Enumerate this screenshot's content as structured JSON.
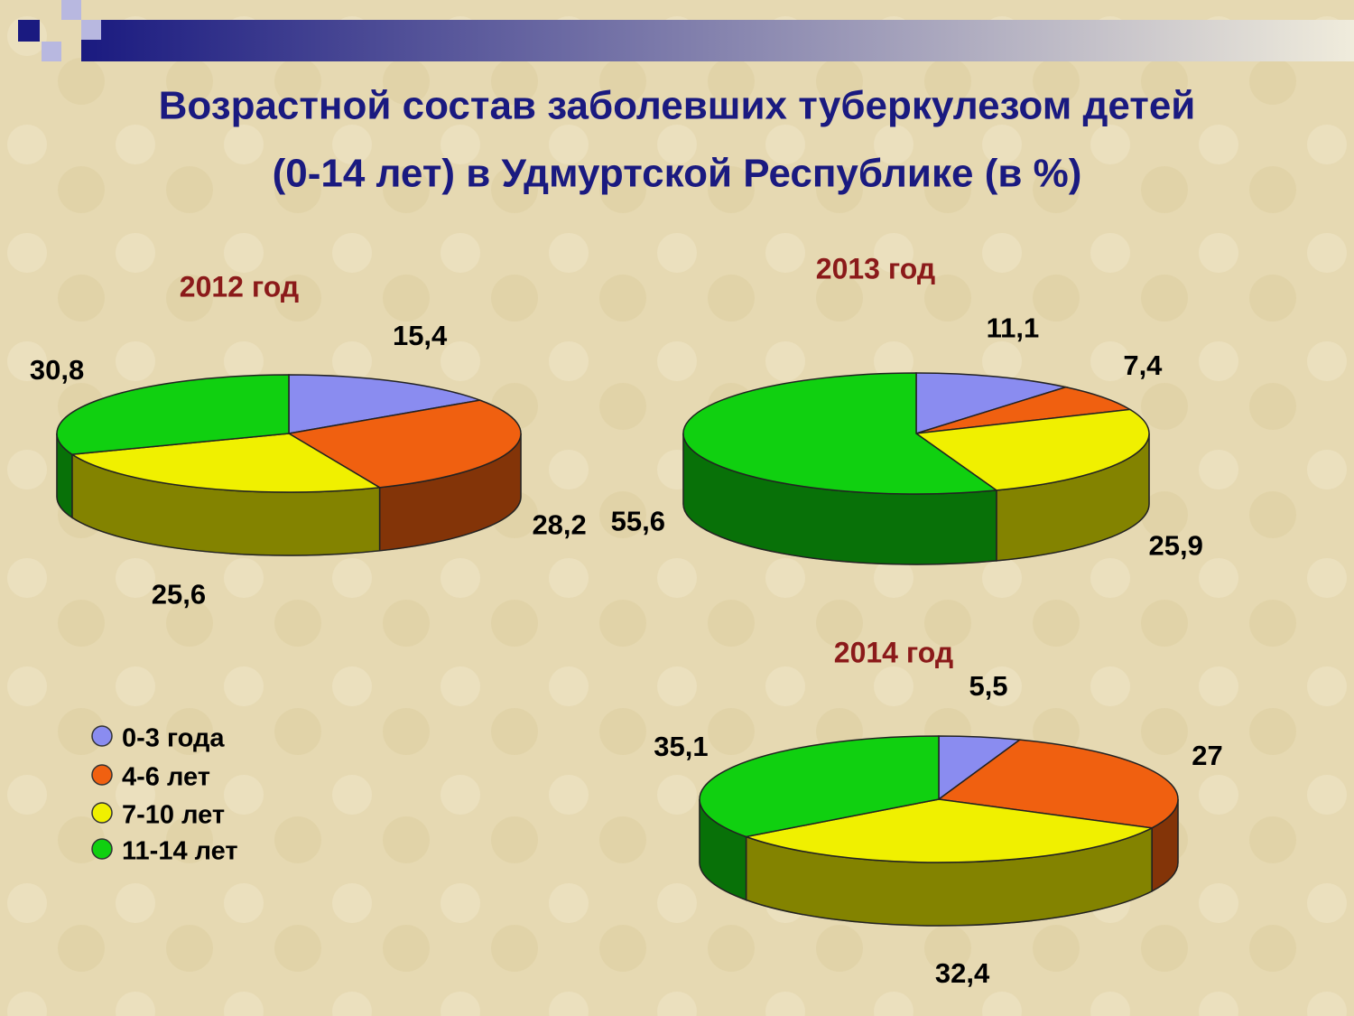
{
  "title": [
    "Возрастной состав заболевших туберкулезом детей",
    "(0-14 лет) в Удмуртской Республике (в %)"
  ],
  "chart_data": [
    {
      "type": "pie",
      "title": "2012 год",
      "categories": [
        "0-3 года",
        "4-6 лет",
        "7-10 лет",
        "11-14 лет"
      ],
      "colors": [
        "#8a8cf0",
        "#f06010",
        "#f0f000",
        "#10d010"
      ],
      "values": [
        15.4,
        28.2,
        25.6,
        30.8
      ],
      "value_labels": [
        "15,4",
        "28,2",
        "25,6",
        "30,8"
      ]
    },
    {
      "type": "pie",
      "title": "2013 год",
      "colors": [
        "#8a8cf0",
        "#f06010",
        "#f0f000",
        "#10d010"
      ],
      "values": [
        11.1,
        7.4,
        25.9,
        55.6
      ],
      "value_labels": [
        "11,1",
        "7,4",
        "25,9",
        "55,6"
      ]
    },
    {
      "type": "pie",
      "title": "2014 год",
      "colors": [
        "#8a8cf0",
        "#f06010",
        "#f0f000",
        "#10d010"
      ],
      "values": [
        5.5,
        27,
        32.4,
        35.1
      ],
      "value_labels": [
        "5,5",
        "27",
        "32,4",
        "35,1"
      ]
    }
  ]
}
